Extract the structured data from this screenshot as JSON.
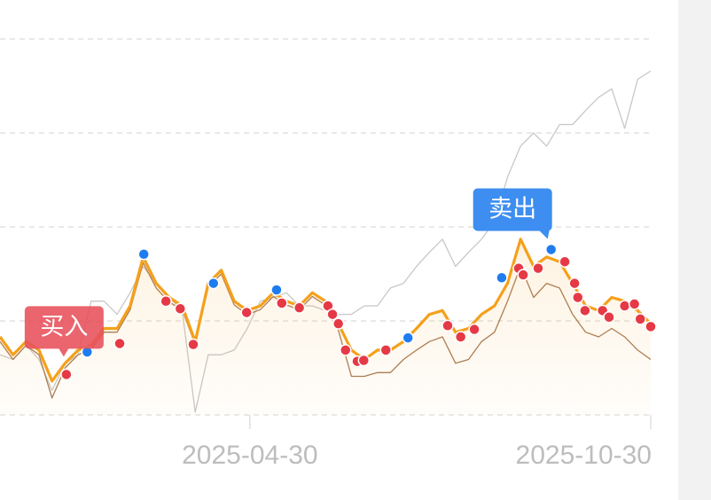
{
  "chart_data": {
    "type": "line",
    "x": [
      0,
      2,
      4,
      6,
      8,
      10,
      12,
      14,
      16,
      18,
      20,
      22,
      24,
      26,
      28,
      30,
      32,
      34,
      36,
      38,
      40,
      42,
      44,
      46,
      48,
      50,
      52,
      54,
      56,
      58,
      60,
      62,
      64,
      66,
      68,
      70,
      72,
      74,
      76,
      78,
      80,
      82,
      84,
      86,
      88,
      90,
      92,
      94,
      96,
      98,
      100
    ],
    "xlim": [
      0,
      100
    ],
    "xticks": [
      {
        "value": 38.4,
        "label": "2025-04-30"
      },
      {
        "value": 100,
        "label": "2025-10-30"
      }
    ],
    "ylim": [
      0,
      4
    ],
    "ygrid": [
      0,
      1,
      2,
      3,
      4
    ],
    "grid": true,
    "series": [
      {
        "color": "#c8c8c8",
        "values": [
          0.64,
          0.59,
          0.74,
          0.59,
          0.26,
          0.55,
          0.64,
          1.21,
          1.21,
          1.07,
          1.3,
          1.58,
          1.4,
          1.25,
          1.11,
          0.03,
          0.64,
          0.64,
          0.69,
          0.92,
          1.21,
          1.25,
          1.3,
          1.16,
          1.16,
          1.11,
          1.07,
          1.07,
          1.16,
          1.16,
          1.35,
          1.4,
          1.58,
          1.73,
          1.87,
          1.58,
          1.73,
          1.87,
          2.06,
          2.53,
          2.86,
          3.0,
          2.86,
          3.09,
          3.09,
          3.24,
          3.38,
          3.47,
          3.05,
          3.57,
          3.66
        ]
      },
      {
        "color": "#a87b55",
        "values": [
          0.78,
          0.59,
          0.74,
          0.64,
          0.18,
          0.5,
          0.64,
          0.7,
          0.88,
          0.88,
          1.12,
          1.62,
          1.35,
          1.2,
          1.12,
          0.75,
          1.36,
          1.5,
          1.17,
          1.07,
          1.12,
          1.26,
          1.17,
          1.12,
          1.26,
          1.17,
          0.9,
          0.41,
          0.41,
          0.45,
          0.45,
          0.59,
          0.69,
          0.78,
          0.83,
          0.55,
          0.59,
          0.78,
          0.88,
          1.21,
          1.58,
          1.25,
          1.4,
          1.35,
          1.07,
          0.88,
          0.83,
          0.92,
          0.83,
          0.69,
          0.59
        ]
      },
      {
        "color": "#f5a01a",
        "area": true,
        "values": [
          0.83,
          0.64,
          0.78,
          0.69,
          0.36,
          0.55,
          0.69,
          0.74,
          0.92,
          0.92,
          1.16,
          1.68,
          1.4,
          1.25,
          1.16,
          0.78,
          1.4,
          1.54,
          1.21,
          1.11,
          1.16,
          1.3,
          1.21,
          1.16,
          1.3,
          1.21,
          0.97,
          0.69,
          0.59,
          0.69,
          0.69,
          0.78,
          0.92,
          1.07,
          1.11,
          0.88,
          0.92,
          1.07,
          1.16,
          1.4,
          1.87,
          1.58,
          1.68,
          1.63,
          1.4,
          1.16,
          1.11,
          1.25,
          1.21,
          1.11,
          0.97
        ]
      }
    ],
    "signals": [
      {
        "type": "scatter",
        "color": "#e63946",
        "x": [
          10.2,
          18.4,
          25.5,
          27.7,
          29.7,
          37.9,
          43.3,
          46.0,
          50.4,
          51.1,
          52.0,
          53.1,
          54.9,
          55.9,
          59.3,
          68.8,
          70.8,
          72.9,
          79.7,
          80.4,
          82.7,
          86.8,
          88.3,
          88.8,
          89.9,
          92.6,
          93.6,
          96.0,
          97.5,
          98.4,
          100
        ],
        "values": [
          0.43,
          0.76,
          1.21,
          1.13,
          0.75,
          1.09,
          1.19,
          1.14,
          1.16,
          1.07,
          0.97,
          0.69,
          0.57,
          0.58,
          0.69,
          0.95,
          0.83,
          0.91,
          1.56,
          1.49,
          1.56,
          1.63,
          1.4,
          1.25,
          1.11,
          1.11,
          1.04,
          1.16,
          1.18,
          1.02,
          0.94
        ]
      },
      {
        "type": "scatter",
        "color": "#1f7cf0",
        "x": [
          13.4,
          22.1,
          32.8,
          42.5,
          62.7,
          77.1,
          84.7
        ],
        "values": [
          0.67,
          1.71,
          1.4,
          1.33,
          0.82,
          1.46,
          1.76
        ]
      }
    ],
    "annotations": [
      {
        "text": "买入",
        "color": "#e8505b",
        "x": 10.2,
        "y": 0.43
      },
      {
        "text": "卖出",
        "color": "#3d8ef0",
        "x": 84.7,
        "y": 1.76
      }
    ]
  }
}
